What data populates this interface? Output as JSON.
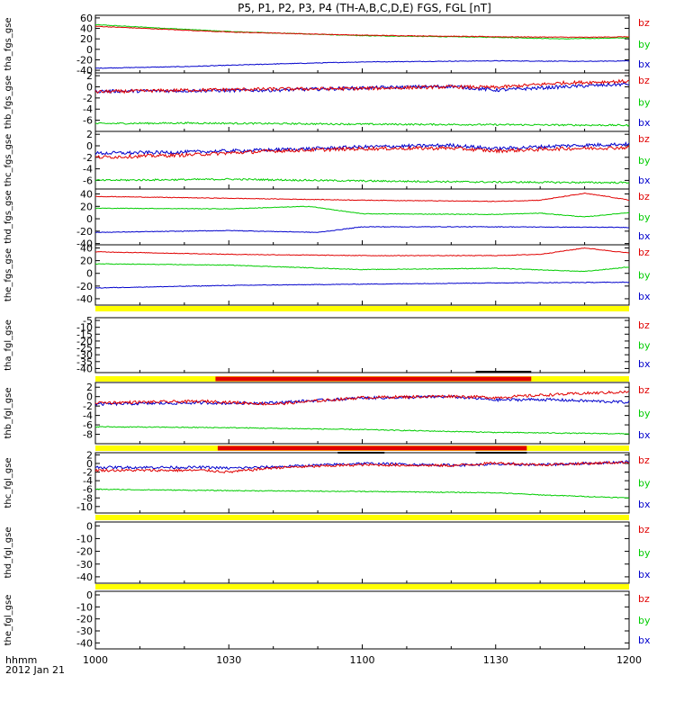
{
  "figure": {
    "title": "P5, P1, P2, P3, P4 (TH-A,B,C,D,E) FGS, FGL [nT]",
    "time_label": "hhmm",
    "date_label": "2012 Jan 21"
  },
  "chart_data": {
    "type": "line",
    "x_ticks": [
      "1000",
      "1030",
      "1100",
      "1130",
      "1200"
    ],
    "x_range": [
      "10:00",
      "12:00"
    ],
    "component_labels": [
      "bz",
      "by",
      "bx"
    ],
    "colors": {
      "bz": "#e00000",
      "by": "#00cc00",
      "bx": "#0000cc",
      "flag_yellow": "#ffff00",
      "flag_red": "#e00000",
      "flag_black": "#000000"
    },
    "panels": [
      {
        "ylabel": "tha_fgs_gse",
        "ylim": [
          -45,
          65
        ],
        "y_ticks": [
          60,
          40,
          20,
          0,
          -20,
          -40
        ],
        "series": [
          {
            "name": "bz",
            "x": [
              0,
              30,
              60,
              90,
              110,
              120
            ],
            "values": [
              44,
              33,
              27,
              24,
              23,
              24
            ],
            "noise": 0.6
          },
          {
            "name": "by",
            "x": [
              0,
              30,
              60,
              90,
              105,
              120
            ],
            "values": [
              47,
              34,
              26,
              23,
              20,
              22
            ],
            "noise": 0.6
          },
          {
            "name": "bx",
            "x": [
              0,
              20,
              40,
              60,
              90,
              110,
              120
            ],
            "values": [
              -36,
              -33,
              -28,
              -24,
              -22,
              -23,
              -22
            ],
            "noise": 0.6
          }
        ]
      },
      {
        "ylabel": "thb_fgs_gse",
        "ylim": [
          -8,
          2.5
        ],
        "y_ticks": [
          2,
          0,
          -2,
          -4,
          -6
        ],
        "series": [
          {
            "name": "bz",
            "x": [
              0,
              20,
              40,
              60,
              80,
              90,
              105,
              120
            ],
            "values": [
              -0.9,
              -0.6,
              -0.4,
              -0.3,
              0.0,
              -0.1,
              0.7,
              1.0
            ],
            "noise": 0.3
          },
          {
            "name": "by",
            "x": [
              0,
              20,
              40,
              60,
              90,
              120
            ],
            "values": [
              -6.6,
              -6.5,
              -6.6,
              -6.7,
              -6.8,
              -6.9
            ],
            "noise": 0.15
          },
          {
            "name": "bx",
            "x": [
              0,
              20,
              40,
              60,
              80,
              90,
              105,
              120
            ],
            "values": [
              -0.8,
              -0.7,
              -0.6,
              -0.2,
              0.1,
              -0.6,
              0.0,
              0.5
            ],
            "noise": 0.3
          }
        ]
      },
      {
        "ylabel": "thc_fgs_gse",
        "ylim": [
          -7.5,
          2.5
        ],
        "y_ticks": [
          2,
          0,
          -2,
          -4,
          -6
        ],
        "series": [
          {
            "name": "bz",
            "x": [
              0,
              20,
              40,
              60,
              80,
              90,
              105,
              120
            ],
            "values": [
              -2.0,
              -1.6,
              -0.9,
              -0.5,
              -0.4,
              -0.9,
              -0.5,
              -0.3
            ],
            "noise": 0.3
          },
          {
            "name": "by",
            "x": [
              0,
              30,
              60,
              90,
              120
            ],
            "values": [
              -6.0,
              -5.8,
              -6.1,
              -6.3,
              -6.4
            ],
            "noise": 0.15
          },
          {
            "name": "bx",
            "x": [
              0,
              20,
              40,
              60,
              80,
              90,
              105,
              120
            ],
            "values": [
              -1.3,
              -1.1,
              -0.7,
              -0.2,
              0.1,
              -0.5,
              0.0,
              0.3
            ],
            "noise": 0.3
          }
        ]
      },
      {
        "ylabel": "thd_fgs_gse",
        "ylim": [
          -42,
          48
        ],
        "y_ticks": [
          40,
          20,
          0,
          -20,
          -40
        ],
        "series": [
          {
            "name": "bz",
            "x": [
              0,
              30,
              60,
              90,
              100,
              110,
              115,
              120
            ],
            "values": [
              36,
              33,
              30,
              28,
              30,
              41,
              36,
              30
            ],
            "noise": 0.5
          },
          {
            "name": "by",
            "x": [
              0,
              30,
              48,
              60,
              90,
              100,
              110,
              120
            ],
            "values": [
              17,
              16,
              20,
              8,
              7,
              9,
              3,
              10
            ],
            "noise": 0.5
          },
          {
            "name": "bx",
            "x": [
              0,
              30,
              50,
              60,
              90,
              120
            ],
            "values": [
              -22,
              -19,
              -22,
              -13,
              -13,
              -14
            ],
            "noise": 0.5
          }
        ]
      },
      {
        "ylabel": "the_fgs_gse",
        "ylim": [
          -50,
          45
        ],
        "y_ticks": [
          40,
          20,
          0,
          -20,
          -40
        ],
        "series": [
          {
            "name": "bz",
            "x": [
              0,
              30,
              60,
              90,
              100,
              110,
              120
            ],
            "values": [
              34,
              30,
              28,
              28,
              30,
              40,
              32
            ],
            "noise": 0.5
          },
          {
            "name": "by",
            "x": [
              0,
              30,
              60,
              90,
              110,
              120
            ],
            "values": [
              15,
              13,
              6,
              8,
              3,
              10
            ],
            "noise": 0.5
          },
          {
            "name": "bx",
            "x": [
              0,
              30,
              60,
              90,
              120
            ],
            "values": [
              -23,
              -19,
              -17,
              -15,
              -14
            ],
            "noise": 0.5
          }
        ]
      },
      {
        "ylabel": "tha_fgl_gse",
        "ylim": [
          -43,
          -3
        ],
        "y_ticks": [
          -5,
          -10,
          -15,
          -20,
          -25,
          -30,
          -35,
          -40
        ],
        "series": []
      },
      {
        "ylabel": "thb_fgl_gse",
        "ylim": [
          -10,
          3
        ],
        "y_ticks": [
          2,
          0,
          -2,
          -4,
          -6,
          -8
        ],
        "series": [
          {
            "name": "bz",
            "x": [
              0,
              25,
              30,
              40,
              60,
              80,
              90,
              100,
              110,
              120
            ],
            "values": [
              -1.3,
              -1.0,
              -1.2,
              -1.6,
              -0.2,
              0.1,
              -0.2,
              0.3,
              0.7,
              1.0
            ],
            "noise": 0.3
          },
          {
            "name": "by",
            "x": [
              0,
              30,
              60,
              90,
              120
            ],
            "values": [
              -6.4,
              -6.6,
              -7.0,
              -7.6,
              -7.9
            ],
            "noise": 0.1
          },
          {
            "name": "bx",
            "x": [
              0,
              25,
              30,
              40,
              60,
              80,
              90,
              100,
              110,
              120
            ],
            "values": [
              -1.6,
              -1.3,
              -1.4,
              -1.3,
              -0.3,
              0.0,
              -0.7,
              -0.6,
              -0.9,
              -1.2
            ],
            "noise": 0.3
          }
        ]
      },
      {
        "ylabel": "thc_fgl_gse",
        "ylim": [
          -11.5,
          2.5
        ],
        "y_ticks": [
          2,
          0,
          -2,
          -4,
          -6,
          -8,
          -10
        ],
        "series": [
          {
            "name": "bz",
            "x": [
              0,
              25,
              30,
              40,
              60,
              80,
              90,
              100,
              110,
              120
            ],
            "values": [
              -1.6,
              -1.6,
              -2.0,
              -1.0,
              -0.3,
              -0.5,
              0.1,
              -0.3,
              0.0,
              0.3
            ],
            "noise": 0.3
          },
          {
            "name": "by",
            "x": [
              0,
              30,
              60,
              90,
              100,
              120
            ],
            "values": [
              -6.0,
              -6.3,
              -6.5,
              -6.8,
              -7.3,
              -8.0
            ],
            "noise": 0.1
          },
          {
            "name": "bx",
            "x": [
              0,
              25,
              30,
              40,
              60,
              80,
              90,
              100,
              110,
              120
            ],
            "values": [
              -0.9,
              -0.9,
              -1.1,
              -0.8,
              0.0,
              -0.4,
              -0.2,
              -0.3,
              0.0,
              0.4
            ],
            "noise": 0.3
          }
        ]
      },
      {
        "ylabel": "thd_fgl_gse",
        "ylim": [
          -45,
          3
        ],
        "y_ticks": [
          0,
          -10,
          -20,
          -30,
          -40
        ],
        "series": []
      },
      {
        "ylabel": "the_fgl_gse",
        "ylim": [
          -45,
          3
        ],
        "y_ticks": [
          0,
          -10,
          -20,
          -30,
          -40
        ],
        "series": []
      }
    ],
    "flag_bars": [
      {
        "after_panel": 4,
        "segments": [
          {
            "color": "flag_yellow",
            "x": [
              0,
              120
            ]
          }
        ]
      },
      {
        "after_panel": 5,
        "segments": [
          {
            "color": "flag_yellow",
            "x": [
              0,
              120
            ]
          },
          {
            "color": "flag_red",
            "x": [
              27,
              98
            ]
          },
          {
            "color": "flag_black",
            "x": [
              85.5,
              98
            ],
            "row": "upper"
          }
        ]
      },
      {
        "after_panel": 6,
        "segments": [
          {
            "color": "flag_yellow",
            "x": [
              0,
              120
            ]
          },
          {
            "color": "flag_red",
            "x": [
              27.5,
              97
            ]
          },
          {
            "color": "flag_black",
            "x": [
              54.5,
              65
            ],
            "row": "lower"
          },
          {
            "color": "flag_black",
            "x": [
              85.5,
              97
            ],
            "row": "lower"
          }
        ]
      },
      {
        "after_panel": 7,
        "segments": [
          {
            "color": "flag_yellow",
            "x": [
              0,
              120
            ]
          }
        ]
      },
      {
        "after_panel": 8,
        "segments": [
          {
            "color": "flag_yellow",
            "x": [
              0,
              120
            ]
          }
        ]
      }
    ]
  }
}
